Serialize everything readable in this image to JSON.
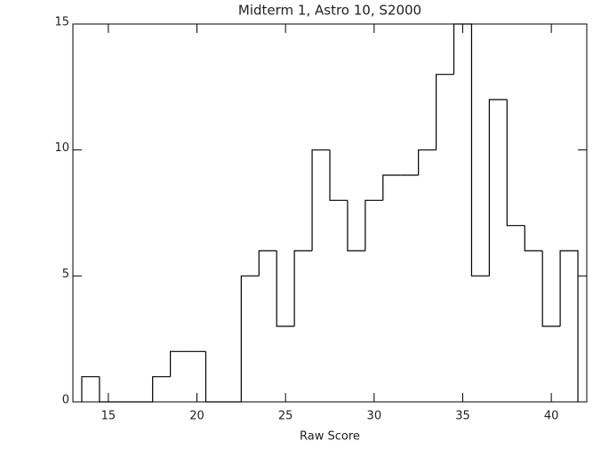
{
  "chart_data": {
    "type": "histogram",
    "title": "Midterm 1, Astro 10, S2000",
    "x_label": "Raw Score",
    "bins": [
      13.5,
      14.5,
      15.5,
      16.5,
      17.5,
      18.5,
      19.5,
      20.5,
      21.5,
      22.5,
      23.5,
      24.5,
      25.5,
      26.5,
      27.5,
      28.5,
      29.5,
      30.5,
      31.5,
      32.5,
      33.5,
      34.5,
      35.5,
      36.5,
      37.5,
      38.5,
      39.5,
      40.5,
      41.5
    ],
    "values": [
      1,
      0,
      0,
      0,
      1,
      2,
      2,
      0,
      0,
      5,
      6,
      3,
      6,
      10,
      8,
      6,
      8,
      9,
      9,
      10,
      13,
      15,
      5,
      12,
      7,
      6,
      3,
      6
    ],
    "color": "#000000",
    "xlim": [
      13,
      42
    ],
    "xticks": [
      15,
      20,
      25,
      30,
      35,
      40
    ],
    "ylim": [
      0,
      15
    ],
    "yticks": [
      0,
      5,
      10,
      15
    ]
  }
}
